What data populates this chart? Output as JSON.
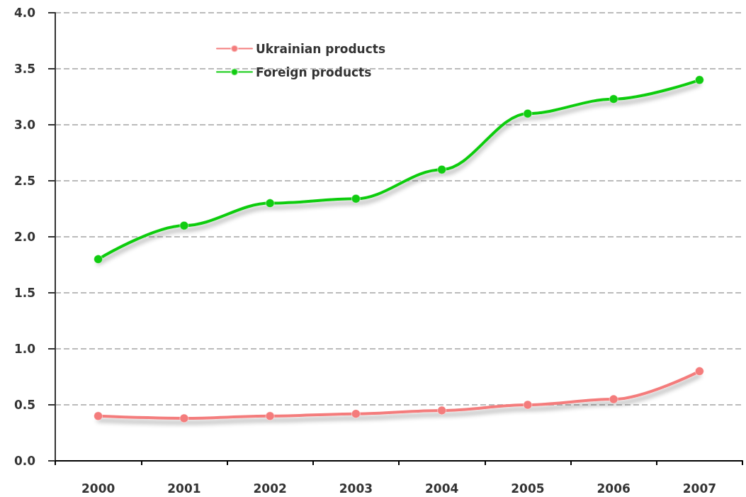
{
  "chart_data": {
    "type": "line",
    "categories": [
      "2000",
      "2001",
      "2002",
      "2003",
      "2004",
      "2005",
      "2006",
      "2007"
    ],
    "series": [
      {
        "name": "Ukrainian products",
        "color": "#f47c7c",
        "values": [
          0.4,
          0.38,
          0.4,
          0.42,
          0.45,
          0.5,
          0.55,
          0.8
        ]
      },
      {
        "name": "Foreign products",
        "color": "#11cc11",
        "values": [
          1.8,
          2.1,
          2.3,
          2.34,
          2.6,
          3.1,
          3.23,
          3.4
        ]
      }
    ],
    "ylim": [
      0,
      4
    ],
    "yticks": [
      {
        "value": 0,
        "label": "0.0"
      },
      {
        "value": 0.5,
        "label": "0.5"
      },
      {
        "value": 1,
        "label": "1.0"
      },
      {
        "value": 1.5,
        "label": "1.5"
      },
      {
        "value": 2,
        "label": "2.0"
      },
      {
        "value": 2.5,
        "label": "2.5"
      },
      {
        "value": 3,
        "label": "3.0"
      },
      {
        "value": 3.5,
        "label": "3.5"
      },
      {
        "value": 4,
        "label": "4.0"
      }
    ],
    "grid": "y",
    "legend": "top left",
    "marker": "circle",
    "line_style": "solid"
  }
}
